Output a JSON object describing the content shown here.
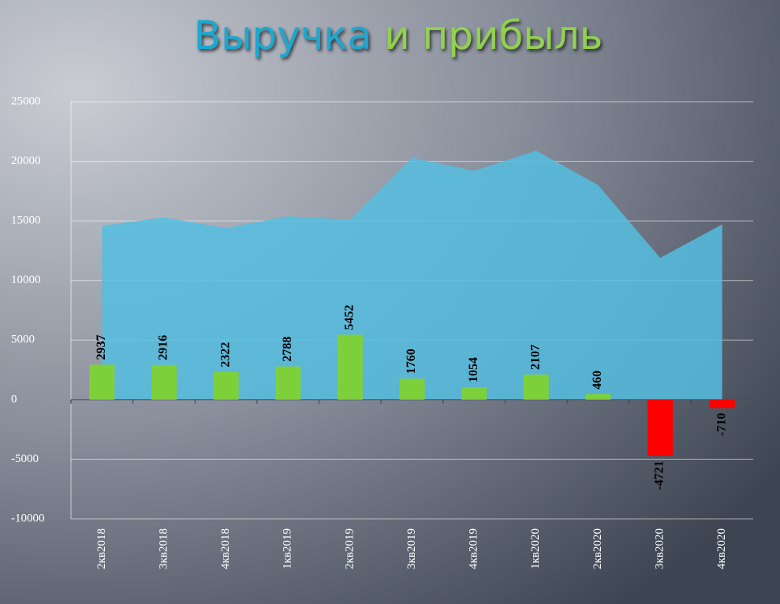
{
  "chart_data": {
    "type": "combo",
    "title": [
      "Выручка",
      "и прибыль"
    ],
    "title_colors": [
      "#1aa8d0",
      "#92d050"
    ],
    "categories": [
      "2кв2018",
      "3кв2018",
      "4кв2018",
      "1кв2019",
      "2кв2019",
      "3кв2019",
      "4кв2019",
      "1кв2020",
      "2кв2020",
      "3кв2020",
      "4кв2020"
    ],
    "series": [
      {
        "type": "area",
        "color": "#55bde0",
        "values": [
          14600,
          15300,
          14400,
          15400,
          15100,
          20300,
          19200,
          20900,
          18000,
          11900,
          14700
        ]
      },
      {
        "type": "bar",
        "color": "#7ed03a",
        "negative_color": "#ff0000",
        "values": [
          2937,
          2916,
          2322,
          2788,
          5452,
          1760,
          1054,
          2107,
          460,
          -4721,
          -710
        ]
      }
    ],
    "ylim": [
      -10000,
      25000
    ],
    "yticks": [
      -10000,
      -5000,
      0,
      5000,
      10000,
      15000,
      20000,
      25000
    ],
    "grid": true
  }
}
